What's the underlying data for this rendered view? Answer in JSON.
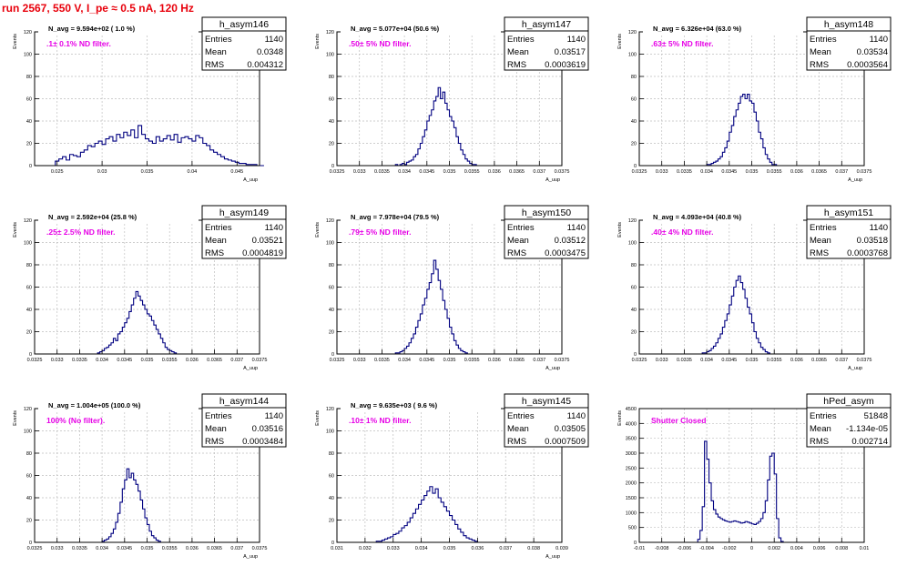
{
  "page_title": "run 2567,   550 V, I_pe ≈ 0.5 nA, 120 Hz",
  "colors": {
    "hist": "#000080",
    "annotation": "#e600e6",
    "title": "#e8000b",
    "grid": "#bfbfbf"
  },
  "stats_labels": {
    "entries": "Entries",
    "mean": "Mean",
    "rms": "RMS"
  },
  "chart_data": [
    {
      "type": "bar",
      "name": "h_asym146",
      "title": "N_avg = 9.594e+02 ( 1.0 %)",
      "annotation": ".1± 0.1% ND filter.",
      "ylabel": "Events",
      "xlabel": "A_uup",
      "stats": {
        "entries": "1140",
        "mean": "0.0348",
        "rms": "0.004312"
      },
      "xlim": [
        0.0225,
        0.0475
      ],
      "ylim": [
        0,
        120
      ],
      "xticks": [
        0.025,
        0.03,
        0.035,
        0.04,
        0.045
      ],
      "xtick_labels": [
        "0.025",
        "0.03",
        "0.035",
        "0.04",
        "0.045"
      ],
      "yticks": [
        0,
        20,
        40,
        60,
        80,
        100,
        120
      ],
      "ytick_labels": [
        "0",
        "20",
        "40",
        "60",
        "80",
        "100",
        "120"
      ],
      "bin_start": 0.0248,
      "bin_width": 0.0004,
      "values": [
        4,
        6,
        8,
        5,
        10,
        9,
        8,
        12,
        14,
        18,
        17,
        20,
        22,
        19,
        24,
        26,
        22,
        28,
        25,
        30,
        27,
        32,
        25,
        36,
        28,
        24,
        22,
        20,
        26,
        22,
        24,
        27,
        23,
        28,
        21,
        25,
        26,
        24,
        22,
        27,
        25,
        20,
        18,
        14,
        12,
        10,
        8,
        6,
        5,
        4,
        3,
        2,
        2,
        1,
        1,
        1,
        0,
        0
      ]
    },
    {
      "type": "bar",
      "name": "h_asym147",
      "title": "N_avg = 5.077e+04 (50.6 %)",
      "annotation": ".50± 5% ND filter.",
      "ylabel": "Events",
      "xlabel": "A_uup",
      "stats": {
        "entries": "1140",
        "mean": "0.03517",
        "rms": "0.0003619"
      },
      "xlim": [
        0.0325,
        0.0375
      ],
      "ylim": [
        0,
        120
      ],
      "xticks": [
        0.0325,
        0.033,
        0.0335,
        0.034,
        0.0345,
        0.035,
        0.0355,
        0.036,
        0.0365,
        0.037,
        0.0375
      ],
      "xtick_labels": [
        "0.0325",
        "0.033",
        "0.0335",
        "0.034",
        "0.0345",
        "0.035",
        "0.0355",
        "0.036",
        "0.0365",
        "0.037",
        "0.0375"
      ],
      "yticks": [
        0,
        20,
        40,
        60,
        80,
        100,
        120
      ],
      "ytick_labels": [
        "0",
        "20",
        "40",
        "60",
        "80",
        "100",
        "120"
      ],
      "bin_start": 0.0338,
      "bin_width": 5e-05,
      "values": [
        1,
        0,
        1,
        2,
        1,
        3,
        4,
        5,
        8,
        10,
        15,
        20,
        26,
        32,
        40,
        45,
        50,
        58,
        62,
        70,
        60,
        66,
        56,
        50,
        44,
        40,
        34,
        26,
        20,
        14,
        10,
        6,
        4,
        2,
        1,
        1
      ]
    },
    {
      "type": "bar",
      "name": "h_asym148",
      "title": "N_avg = 6.326e+04 (63.0 %)",
      "annotation": ".63± 5% ND filter.",
      "ylabel": "Events",
      "xlabel": "A_uup",
      "stats": {
        "entries": "1140",
        "mean": "0.03534",
        "rms": "0.0003564"
      },
      "xlim": [
        0.0325,
        0.0375
      ],
      "ylim": [
        0,
        120
      ],
      "xticks": [
        0.0325,
        0.033,
        0.0335,
        0.034,
        0.0345,
        0.035,
        0.0355,
        0.036,
        0.0365,
        0.037,
        0.0375
      ],
      "xtick_labels": [
        "0.0325",
        "0.033",
        "0.0335",
        "0.034",
        "0.0345",
        "0.035",
        "0.0355",
        "0.036",
        "0.0365",
        "0.037",
        "0.0375"
      ],
      "yticks": [
        0,
        20,
        40,
        60,
        80,
        100,
        120
      ],
      "ytick_labels": [
        "0",
        "20",
        "40",
        "60",
        "80",
        "100",
        "120"
      ],
      "bin_start": 0.034,
      "bin_width": 5e-05,
      "values": [
        1,
        1,
        2,
        3,
        4,
        6,
        8,
        12,
        16,
        22,
        30,
        36,
        44,
        50,
        56,
        62,
        64,
        60,
        64,
        58,
        56,
        48,
        40,
        30,
        24,
        16,
        10,
        6,
        3,
        1,
        1
      ]
    },
    {
      "type": "bar",
      "name": "h_asym149",
      "title": "N_avg = 2.592e+04 (25.8 %)",
      "annotation": ".25± 2.5% ND filter.",
      "ylabel": "Events",
      "xlabel": "A_uup",
      "stats": {
        "entries": "1140",
        "mean": "0.03521",
        "rms": "0.0004819"
      },
      "xlim": [
        0.0325,
        0.0375
      ],
      "ylim": [
        0,
        120
      ],
      "xticks": [
        0.0325,
        0.033,
        0.0335,
        0.034,
        0.0345,
        0.035,
        0.0355,
        0.036,
        0.0365,
        0.037,
        0.0375
      ],
      "xtick_labels": [
        "0.0325",
        "0.033",
        "0.0335",
        "0.034",
        "0.0345",
        "0.035",
        "0.0355",
        "0.036",
        "0.0365",
        "0.037",
        "0.0375"
      ],
      "yticks": [
        0,
        20,
        40,
        60,
        80,
        100,
        120
      ],
      "ytick_labels": [
        "0",
        "20",
        "40",
        "60",
        "80",
        "100",
        "120"
      ],
      "bin_start": 0.0339,
      "bin_width": 5e-05,
      "values": [
        1,
        2,
        3,
        5,
        6,
        8,
        10,
        14,
        12,
        18,
        20,
        24,
        28,
        32,
        38,
        44,
        50,
        56,
        52,
        48,
        44,
        40,
        36,
        34,
        30,
        26,
        22,
        18,
        14,
        10,
        6,
        4,
        3,
        2,
        1
      ]
    },
    {
      "type": "bar",
      "name": "h_asym150",
      "title": "N_avg = 7.978e+04 (79.5 %)",
      "annotation": ".79± 5% ND filter.",
      "ylabel": "Events",
      "xlabel": "A_uup",
      "stats": {
        "entries": "1140",
        "mean": "0.03512",
        "rms": "0.0003475"
      },
      "xlim": [
        0.0325,
        0.0375
      ],
      "ylim": [
        0,
        120
      ],
      "xticks": [
        0.0325,
        0.033,
        0.0335,
        0.034,
        0.0345,
        0.035,
        0.0355,
        0.036,
        0.0365,
        0.037,
        0.0375
      ],
      "xtick_labels": [
        "0.0325",
        "0.033",
        "0.0335",
        "0.034",
        "0.0345",
        "0.035",
        "0.0355",
        "0.036",
        "0.0365",
        "0.037",
        "0.0375"
      ],
      "yticks": [
        0,
        20,
        40,
        60,
        80,
        100,
        120
      ],
      "ytick_labels": [
        "0",
        "20",
        "40",
        "60",
        "80",
        "100",
        "120"
      ],
      "bin_start": 0.0338,
      "bin_width": 5e-05,
      "values": [
        1,
        1,
        2,
        3,
        5,
        7,
        10,
        14,
        18,
        24,
        30,
        36,
        44,
        50,
        58,
        64,
        72,
        84,
        76,
        66,
        58,
        48,
        40,
        32,
        24,
        18,
        12,
        8,
        5,
        3,
        2,
        1
      ]
    },
    {
      "type": "bar",
      "name": "h_asym151",
      "title": "N_avg = 4.093e+04 (40.8 %)",
      "annotation": ".40± 4% ND filter.",
      "ylabel": "Events",
      "xlabel": "A_uup",
      "stats": {
        "entries": "1140",
        "mean": "0.03518",
        "rms": "0.0003768"
      },
      "xlim": [
        0.0325,
        0.0375
      ],
      "ylim": [
        0,
        120
      ],
      "xticks": [
        0.0325,
        0.033,
        0.0335,
        0.034,
        0.0345,
        0.035,
        0.0355,
        0.036,
        0.0365,
        0.037,
        0.0375
      ],
      "xtick_labels": [
        "0.0325",
        "0.033",
        "0.0335",
        "0.034",
        "0.0345",
        "0.035",
        "0.0355",
        "0.036",
        "0.0365",
        "0.037",
        "0.0375"
      ],
      "yticks": [
        0,
        20,
        40,
        60,
        80,
        100,
        120
      ],
      "ytick_labels": [
        "0",
        "20",
        "40",
        "60",
        "80",
        "100",
        "120"
      ],
      "bin_start": 0.0339,
      "bin_width": 5e-05,
      "values": [
        1,
        1,
        2,
        3,
        5,
        7,
        10,
        14,
        18,
        24,
        30,
        36,
        44,
        52,
        60,
        66,
        70,
        64,
        58,
        50,
        42,
        36,
        28,
        20,
        14,
        10,
        6,
        4,
        2,
        1
      ]
    },
    {
      "type": "bar",
      "name": "h_asym144",
      "title": "N_avg = 1.004e+05 (100.0 %)",
      "annotation": "100% (No filter).",
      "ylabel": "Events",
      "xlabel": "A_uup",
      "stats": {
        "entries": "1140",
        "mean": "0.03516",
        "rms": "0.0003484"
      },
      "xlim": [
        0.0325,
        0.0375
      ],
      "ylim": [
        0,
        120
      ],
      "xticks": [
        0.0325,
        0.033,
        0.0335,
        0.034,
        0.0345,
        0.035,
        0.0355,
        0.036,
        0.0365,
        0.037,
        0.0375
      ],
      "xtick_labels": [
        "0.0325",
        "0.033",
        "0.0335",
        "0.034",
        "0.0345",
        "0.035",
        "0.0355",
        "0.036",
        "0.0365",
        "0.037",
        "0.0375"
      ],
      "yticks": [
        0,
        20,
        40,
        60,
        80,
        100,
        120
      ],
      "ytick_labels": [
        "0",
        "20",
        "40",
        "60",
        "80",
        "100",
        "120"
      ],
      "bin_start": 0.034,
      "bin_width": 5e-05,
      "values": [
        1,
        2,
        3,
        5,
        8,
        12,
        18,
        26,
        36,
        48,
        56,
        66,
        58,
        62,
        56,
        52,
        46,
        38,
        30,
        22,
        16,
        10,
        6,
        4,
        2,
        1
      ]
    },
    {
      "type": "bar",
      "name": "h_asym145",
      "title": "N_avg = 9.635e+03 ( 9.6 %)",
      "annotation": ".10± 1% ND filter.",
      "ylabel": "Events",
      "xlabel": "A_uup",
      "stats": {
        "entries": "1140",
        "mean": "0.03505",
        "rms": "0.0007509"
      },
      "xlim": [
        0.031,
        0.039
      ],
      "ylim": [
        0,
        120
      ],
      "xticks": [
        0.031,
        0.032,
        0.033,
        0.034,
        0.035,
        0.036,
        0.037,
        0.038,
        0.039
      ],
      "xtick_labels": [
        "0.031",
        "0.032",
        "0.033",
        "0.034",
        "0.035",
        "0.036",
        "0.037",
        "0.038",
        "0.039"
      ],
      "yticks": [
        0,
        20,
        40,
        60,
        80,
        100,
        120
      ],
      "ytick_labels": [
        "0",
        "20",
        "40",
        "60",
        "80",
        "100",
        "120"
      ],
      "bin_start": 0.0324,
      "bin_width": 0.0001,
      "values": [
        1,
        1,
        2,
        3,
        4,
        5,
        7,
        8,
        10,
        13,
        15,
        18,
        22,
        26,
        30,
        34,
        38,
        42,
        46,
        50,
        44,
        48,
        40,
        36,
        32,
        28,
        24,
        20,
        16,
        12,
        9,
        6,
        4,
        3,
        2,
        1
      ]
    },
    {
      "type": "bar",
      "name": "hPed_asym",
      "title": "",
      "annotation": "Shutter Closed",
      "ylabel": "Events",
      "xlabel": "",
      "stats": {
        "entries": "51848",
        "mean": "-1.134e-05",
        "rms": "0.002714"
      },
      "xlim": [
        -0.01,
        0.01
      ],
      "ylim": [
        0,
        4500
      ],
      "xticks": [
        -0.01,
        -0.008,
        -0.006,
        -0.004,
        -0.002,
        0,
        0.002,
        0.004,
        0.006,
        0.008,
        0.01
      ],
      "xtick_labels": [
        "-0.01",
        "-0.008",
        "-0.006",
        "-0.004",
        "-0.002",
        "0",
        "0.002",
        "0.004",
        "0.006",
        "0.008",
        "0.01"
      ],
      "yticks": [
        0,
        500,
        1000,
        1500,
        2000,
        2500,
        3000,
        3500,
        4000,
        4500
      ],
      "ytick_labels": [
        "0",
        "500",
        "1000",
        "1500",
        "2000",
        "2500",
        "3000",
        "3500",
        "4000",
        "4500"
      ],
      "bin_start": -0.0048,
      "bin_width": 0.0002,
      "values": [
        100,
        400,
        1200,
        3400,
        2800,
        2000,
        1400,
        1100,
        950,
        850,
        800,
        760,
        720,
        700,
        680,
        700,
        720,
        700,
        680,
        650,
        660,
        700,
        680,
        650,
        620,
        600,
        640,
        700,
        800,
        1000,
        1400,
        2100,
        2900,
        3000,
        2300,
        800,
        150,
        30
      ]
    }
  ]
}
